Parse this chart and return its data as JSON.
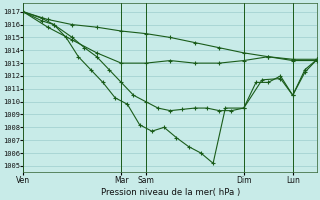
{
  "bg_color": "#c8ebe8",
  "grid_color": "#9ecece",
  "line_color": "#1a5c1a",
  "xlabel": "Pression niveau de la mer( hPa )",
  "ylim": [
    1004.5,
    1017.7
  ],
  "yticks": [
    1005,
    1006,
    1007,
    1008,
    1009,
    1010,
    1011,
    1012,
    1013,
    1014,
    1015,
    1016,
    1017
  ],
  "xlim": [
    0,
    96
  ],
  "xtick_positions": [
    0,
    32,
    40,
    72,
    88
  ],
  "xtick_labels": [
    "Ven",
    "Mar",
    "Sam",
    "Dim",
    "Lun"
  ],
  "vlines": [
    0,
    32,
    40,
    72,
    88
  ],
  "series": [
    {
      "x": [
        0,
        8,
        16,
        24,
        32,
        40,
        48,
        56,
        64,
        72,
        80,
        88,
        96
      ],
      "y": [
        1017.0,
        1016.4,
        1016.0,
        1015.8,
        1015.5,
        1015.3,
        1015.0,
        1014.6,
        1014.2,
        1013.8,
        1013.5,
        1013.2,
        1013.2
      ]
    },
    {
      "x": [
        0,
        8,
        16,
        24,
        32,
        40,
        48,
        56,
        64,
        72,
        80,
        88,
        96
      ],
      "y": [
        1017.0,
        1015.8,
        1014.8,
        1013.8,
        1013.0,
        1013.0,
        1013.2,
        1013.0,
        1013.0,
        1013.2,
        1013.5,
        1013.3,
        1013.3
      ]
    },
    {
      "x": [
        0,
        6,
        10,
        16,
        20,
        24,
        28,
        32,
        36,
        40,
        44,
        48,
        52,
        56,
        60,
        64,
        68,
        72,
        76,
        80,
        84,
        88,
        92,
        96
      ],
      "y": [
        1017.0,
        1016.3,
        1016.0,
        1015.0,
        1014.2,
        1013.5,
        1012.5,
        1011.5,
        1010.5,
        1010.0,
        1009.5,
        1009.3,
        1009.4,
        1009.5,
        1009.5,
        1009.3,
        1009.3,
        1009.5,
        1011.5,
        1011.5,
        1012.0,
        1010.5,
        1012.5,
        1013.3
      ]
    },
    {
      "x": [
        0,
        6,
        10,
        14,
        18,
        22,
        26,
        30,
        34,
        38,
        42,
        46,
        50,
        54,
        58,
        62,
        66,
        72,
        78,
        84,
        88,
        92,
        96
      ],
      "y": [
        1017.0,
        1016.5,
        1016.0,
        1015.0,
        1013.5,
        1012.5,
        1011.5,
        1010.3,
        1009.8,
        1008.2,
        1007.7,
        1008.0,
        1007.2,
        1006.5,
        1006.0,
        1005.2,
        1009.5,
        1009.5,
        1011.7,
        1011.8,
        1010.5,
        1012.3,
        1013.3
      ]
    }
  ]
}
